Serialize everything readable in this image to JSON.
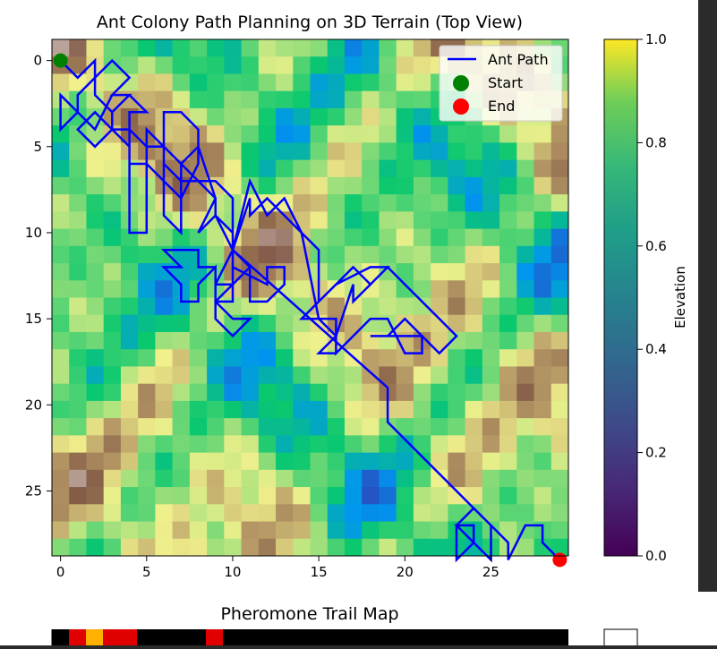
{
  "chart_data": [
    {
      "type": "heatmap",
      "title": "Ant Colony Path Planning on 3D Terrain (Top View)",
      "xlabel": "",
      "ylabel": "",
      "grid_size": [
        30,
        30
      ],
      "xlim": [
        0,
        29
      ],
      "ylim": [
        29,
        0
      ],
      "x_ticks": [
        "0",
        "5",
        "10",
        "15",
        "20",
        "25"
      ],
      "y_ticks": [
        "0",
        "5",
        "10",
        "15",
        "20",
        "25"
      ],
      "colormap": "terrain",
      "colorbar": {
        "label": "Elevation",
        "colormap": "viridis",
        "range": [
          0.0,
          1.0
        ],
        "ticks": [
          "0.0",
          "0.2",
          "0.4",
          "0.6",
          "0.8",
          "1.0"
        ]
      },
      "legend": {
        "position": "top-right",
        "entries": [
          {
            "label": "Ant Path",
            "marker": "line",
            "color": "#0000ff"
          },
          {
            "label": "Start",
            "marker": "circle",
            "color": "#008000"
          },
          {
            "label": "End",
            "marker": "circle",
            "color": "#ff0000"
          }
        ]
      },
      "start": [
        0,
        0
      ],
      "end": [
        29,
        29
      ],
      "path": [
        [
          0,
          0
        ],
        [
          1,
          1
        ],
        [
          2,
          0
        ],
        [
          2,
          1
        ],
        [
          1,
          2
        ],
        [
          1,
          3
        ],
        [
          0,
          2
        ],
        [
          0,
          4
        ],
        [
          1,
          3
        ],
        [
          2,
          4
        ],
        [
          3,
          2
        ],
        [
          4,
          2
        ],
        [
          3,
          3
        ],
        [
          3,
          4
        ],
        [
          2,
          3
        ],
        [
          1,
          4
        ],
        [
          2,
          5
        ],
        [
          3,
          4
        ],
        [
          4,
          5
        ],
        [
          4,
          10
        ],
        [
          5,
          10
        ],
        [
          5,
          4
        ],
        [
          6,
          5
        ],
        [
          6,
          9
        ],
        [
          7,
          10
        ],
        [
          7,
          6
        ],
        [
          8,
          7
        ],
        [
          7,
          7
        ],
        [
          6,
          6
        ],
        [
          6,
          3
        ],
        [
          7,
          3
        ],
        [
          8,
          4
        ],
        [
          8,
          6
        ],
        [
          7,
          8
        ],
        [
          6,
          7
        ],
        [
          5,
          6
        ],
        [
          4,
          6
        ],
        [
          4,
          3
        ],
        [
          5,
          3
        ],
        [
          4,
          2
        ],
        [
          3,
          2
        ],
        [
          4,
          1
        ],
        [
          3,
          0
        ],
        [
          2,
          1
        ],
        [
          2,
          2
        ],
        [
          3,
          3
        ],
        [
          3,
          4
        ],
        [
          4,
          4
        ],
        [
          5,
          5
        ],
        [
          6,
          5
        ],
        [
          7,
          6
        ],
        [
          8,
          5
        ],
        [
          9,
          8
        ],
        [
          8,
          10
        ],
        [
          9,
          9
        ],
        [
          10,
          11
        ],
        [
          11,
          7
        ],
        [
          12,
          9
        ],
        [
          13,
          8
        ],
        [
          14,
          10
        ],
        [
          15,
          11
        ],
        [
          15,
          14
        ],
        [
          16,
          13
        ],
        [
          17,
          12
        ],
        [
          18,
          13
        ],
        [
          19,
          12
        ],
        [
          20,
          13
        ],
        [
          21,
          14
        ],
        [
          22,
          15
        ],
        [
          23,
          16
        ],
        [
          22,
          17
        ],
        [
          21,
          16
        ],
        [
          20,
          15
        ],
        [
          19,
          16
        ],
        [
          18,
          16
        ],
        [
          21,
          16
        ],
        [
          21,
          17
        ],
        [
          20,
          17
        ],
        [
          19,
          15
        ],
        [
          18,
          15
        ],
        [
          17,
          16
        ],
        [
          16,
          17
        ],
        [
          16,
          15
        ],
        [
          15,
          15
        ],
        [
          14,
          15
        ],
        [
          15,
          14
        ],
        [
          16,
          13
        ],
        [
          18,
          12
        ],
        [
          19,
          12
        ],
        [
          18,
          13
        ],
        [
          17,
          14
        ],
        [
          17,
          13
        ],
        [
          16,
          16
        ],
        [
          16,
          17
        ],
        [
          15,
          17
        ],
        [
          16,
          16
        ],
        [
          15,
          15
        ],
        [
          14,
          10
        ],
        [
          13,
          9
        ],
        [
          12,
          8
        ],
        [
          11,
          9
        ],
        [
          11,
          8
        ],
        [
          10,
          11
        ],
        [
          11,
          12
        ],
        [
          11,
          14
        ],
        [
          12,
          14
        ],
        [
          13,
          13
        ],
        [
          13,
          12
        ],
        [
          12,
          12
        ],
        [
          12,
          13
        ],
        [
          10,
          12
        ],
        [
          10,
          14
        ],
        [
          9,
          14
        ],
        [
          9,
          13
        ],
        [
          10,
          13
        ],
        [
          11,
          12
        ],
        [
          10,
          11
        ],
        [
          9,
          13
        ],
        [
          9,
          12
        ],
        [
          8,
          12
        ],
        [
          8,
          11
        ],
        [
          6,
          11
        ],
        [
          7,
          12
        ],
        [
          6,
          12
        ],
        [
          7,
          13
        ],
        [
          7,
          14
        ],
        [
          8,
          14
        ],
        [
          8,
          13
        ],
        [
          9,
          12
        ],
        [
          9,
          15
        ],
        [
          10,
          16
        ],
        [
          11,
          15
        ],
        [
          10,
          15
        ],
        [
          9,
          14
        ],
        [
          10,
          13
        ],
        [
          10,
          11
        ],
        [
          10,
          10
        ],
        [
          9,
          9
        ],
        [
          9,
          8
        ],
        [
          8,
          7
        ],
        [
          9,
          7
        ],
        [
          10,
          8
        ],
        [
          10,
          11
        ],
        [
          19,
          19
        ],
        [
          19,
          21
        ],
        [
          20,
          22
        ],
        [
          21,
          23
        ],
        [
          22,
          24
        ],
        [
          23,
          25
        ],
        [
          24,
          26
        ],
        [
          25,
          27
        ],
        [
          25,
          29
        ],
        [
          24,
          28
        ],
        [
          24,
          27
        ],
        [
          23,
          27
        ],
        [
          24,
          28
        ],
        [
          23,
          29
        ],
        [
          23,
          27
        ],
        [
          24,
          26
        ],
        [
          25,
          27
        ],
        [
          26,
          28
        ],
        [
          26,
          29
        ],
        [
          27,
          27
        ],
        [
          28,
          27
        ],
        [
          28,
          28
        ],
        [
          29,
          29
        ]
      ]
    },
    {
      "type": "heatmap",
      "title": "Pheromone Trail Map",
      "colormap": "hot"
    }
  ]
}
